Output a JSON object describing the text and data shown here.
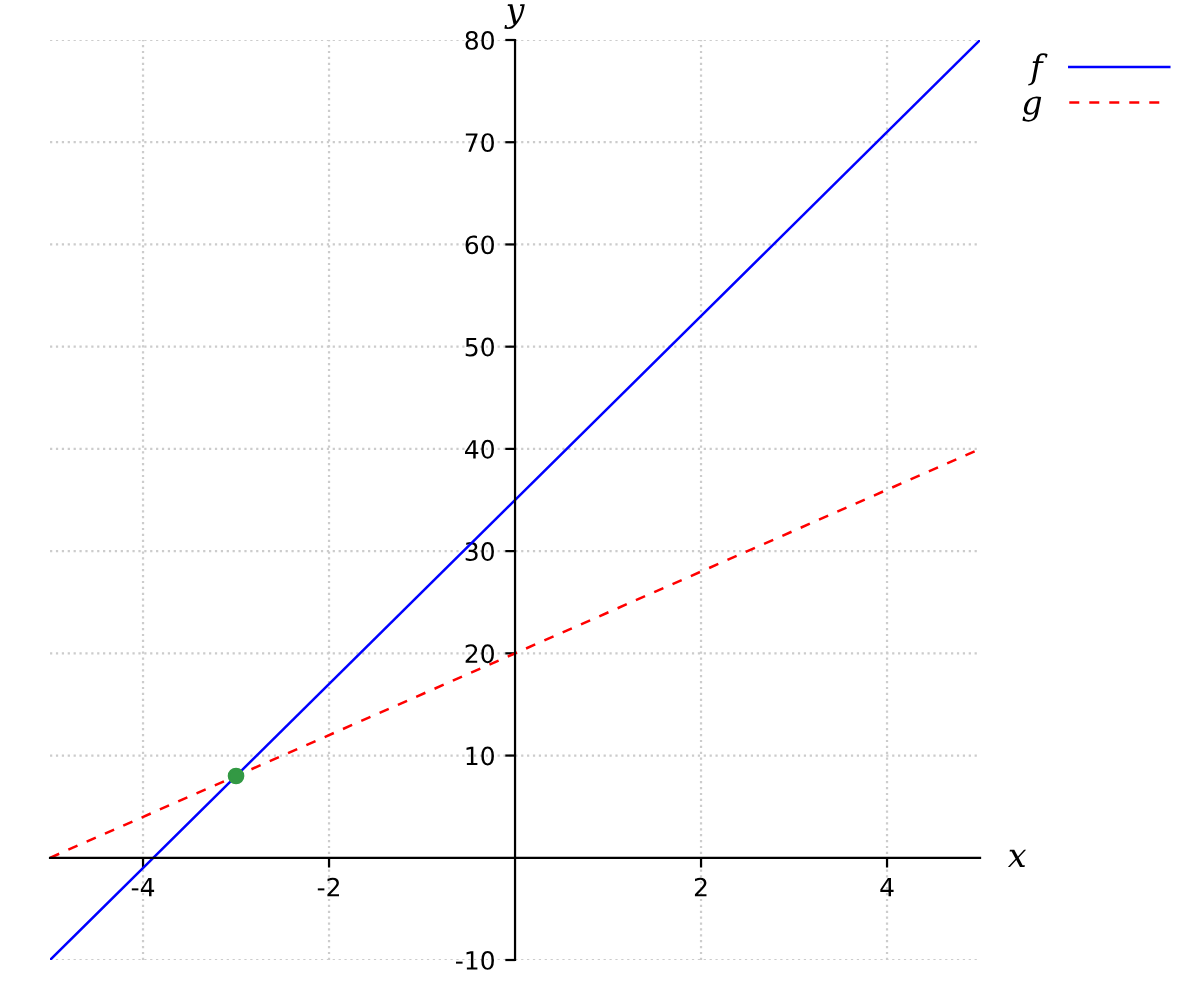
{
  "chart_data": {
    "type": "line",
    "xlabel": "x",
    "ylabel": "y",
    "series": [
      {
        "name": "f",
        "color": "#0000ff",
        "line_style": "solid",
        "x": [
          -5,
          5
        ],
        "values": [
          -10,
          80
        ]
      },
      {
        "name": "g",
        "color": "#ff0000",
        "line_style": "dashed",
        "x": [
          -5,
          5
        ],
        "values": [
          0,
          40
        ]
      },
      {
        "type": "scatter",
        "color": "#339944",
        "marker": "circle",
        "x": [
          -3
        ],
        "values": [
          8
        ]
      }
    ],
    "xlim": [
      -5,
      5
    ],
    "ylim": [
      -10,
      80
    ],
    "xticks": [
      -4,
      -2,
      2,
      4
    ],
    "yticks": [
      -10,
      10,
      20,
      30,
      40,
      50,
      60,
      70,
      80
    ],
    "grid": true,
    "legend": "top right"
  }
}
